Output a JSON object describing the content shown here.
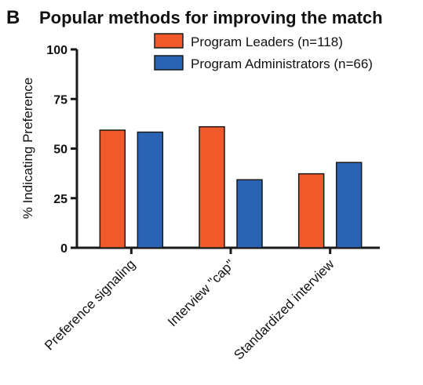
{
  "panel_letter": "B",
  "chart_data": {
    "type": "bar",
    "title": "Popular methods for improving the match",
    "xlabel": "",
    "ylabel": "% Indicating Preference",
    "ylim": [
      0,
      100
    ],
    "yticks": [
      0,
      25,
      50,
      75,
      100
    ],
    "categories": [
      "Preference signaling",
      "Interview \"cap\"",
      "Standardized interview"
    ],
    "series": [
      {
        "name": "Program Leaders (n=118)",
        "color": "#f05a2a",
        "values": [
          59.3,
          61.0,
          37.3
        ]
      },
      {
        "name": "Program Administrators (n=66)",
        "color": "#2b63b4",
        "values": [
          58.3,
          34.3,
          43.0
        ]
      }
    ],
    "legend_position": "top-right",
    "grid": false
  }
}
